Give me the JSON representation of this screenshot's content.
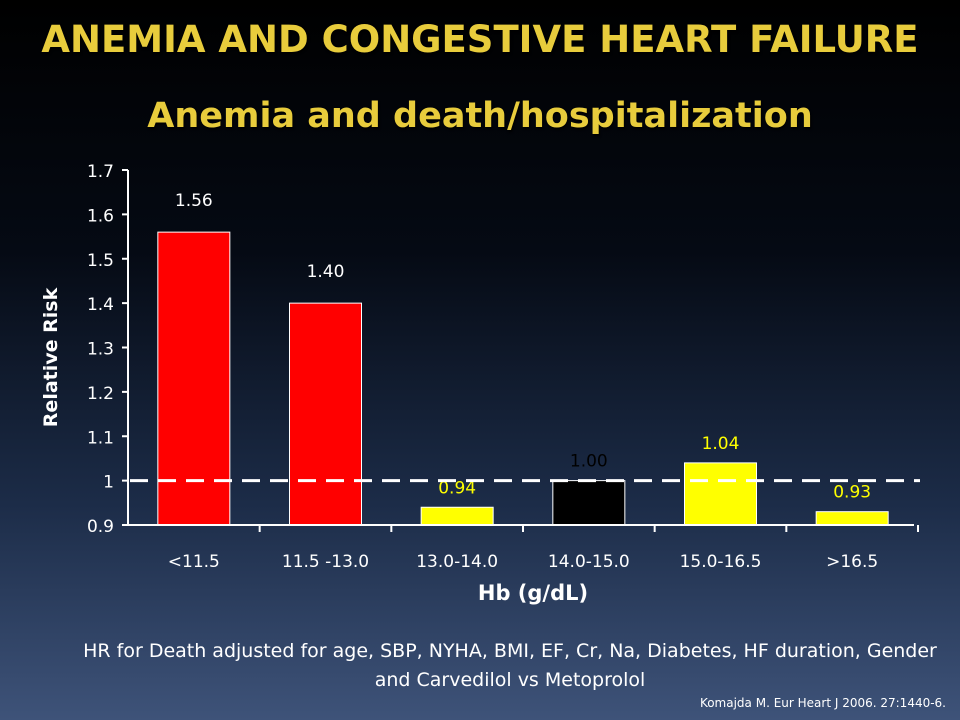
{
  "title": "ANEMIA AND CONGESTIVE HEART FAILURE",
  "subtitle": "Anemia and death/hospitalization",
  "footnote": "HR for Death adjusted for age, SBP, NYHA, BMI, EF, Cr, Na, Diabetes, HF duration, Gender and Carvedilol vs Metoprolol",
  "citation": "Komajda M. Eur Heart J 2006. 27:1440-6.",
  "chart_data": {
    "type": "bar",
    "categories": [
      "<11.5",
      "11.5 -13.0",
      "13.0-14.0",
      "14.0-15.0",
      "15.0-16.5",
      ">16.5"
    ],
    "values": [
      1.56,
      1.4,
      0.94,
      1.0,
      1.04,
      0.93
    ],
    "data_labels": [
      "1.56",
      "1.40",
      "0.94",
      "1.00",
      "1.04",
      "0.93"
    ],
    "bar_colors": [
      "#ff0000",
      "#ff0000",
      "#ffff00",
      "#000000",
      "#ffff00",
      "#ffff00"
    ],
    "xlabel": "Hb (g/dL)",
    "ylabel": "Relative Risk",
    "ylim": [
      0.9,
      1.7
    ],
    "yticks": [
      "0.9",
      "1",
      "1.1",
      "1.2",
      "1.3",
      "1.4",
      "1.5",
      "1.6",
      "1.7"
    ],
    "reference_line": 1.0,
    "grid": false
  }
}
